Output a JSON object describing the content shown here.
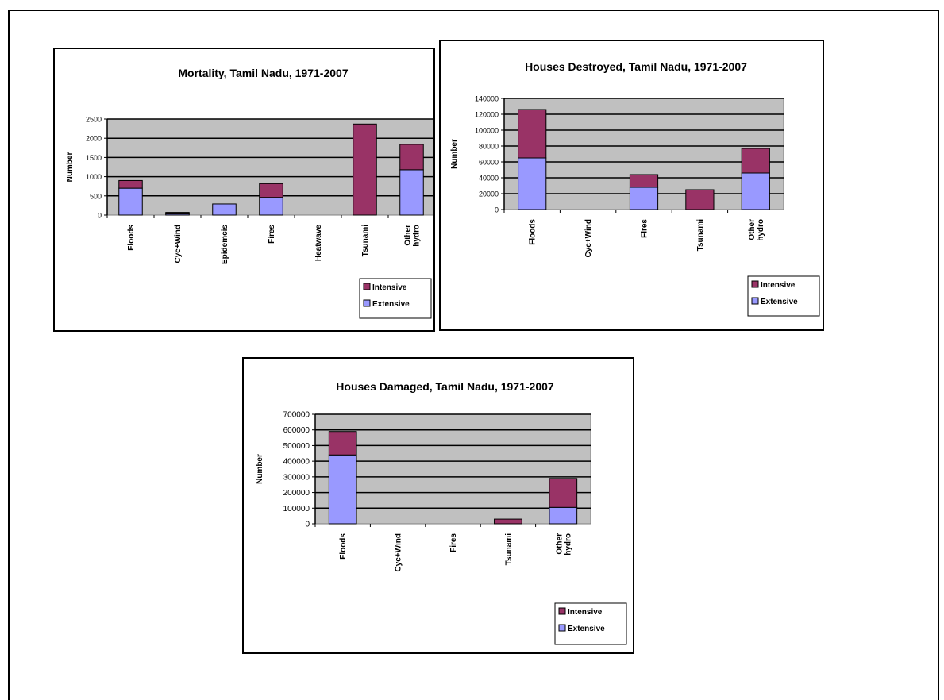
{
  "chart_data": [
    {
      "type": "bar",
      "stacked": true,
      "title": "Mortality, Tamil Nadu, 1971-2007",
      "ylabel": "Number",
      "xlabel": "",
      "categories": [
        "Floods",
        "Cyc+Wind",
        "Epidemcis",
        "Fires",
        "Heatwave",
        "Tsunami",
        "Other hydro"
      ],
      "series": [
        {
          "name": "Extensive",
          "color": "#9999ff",
          "values": [
            700,
            30,
            290,
            460,
            0,
            0,
            1180
          ]
        },
        {
          "name": "Intensive",
          "color": "#993366",
          "values": [
            200,
            40,
            0,
            360,
            0,
            2370,
            660
          ]
        }
      ],
      "ylim": [
        0,
        2500
      ],
      "yticks": [
        0,
        500,
        1000,
        1500,
        2000,
        2500
      ],
      "grid": true,
      "legend": "bottom-right",
      "legend_entries": [
        "Intensive",
        "Extensive"
      ]
    },
    {
      "type": "bar",
      "stacked": true,
      "title": "Houses Destroyed, Tamil Nadu, 1971-2007",
      "ylabel": "Number",
      "xlabel": "",
      "categories": [
        "Floods",
        "Cyc+Wind",
        "Fires",
        "Tsunami",
        "Other hydro"
      ],
      "series": [
        {
          "name": "Extensive",
          "color": "#9999ff",
          "values": [
            65000,
            0,
            28000,
            0,
            46000
          ]
        },
        {
          "name": "Intensive",
          "color": "#993366",
          "values": [
            61000,
            0,
            16000,
            25000,
            31000
          ]
        }
      ],
      "ylim": [
        0,
        140000
      ],
      "yticks": [
        0,
        20000,
        40000,
        60000,
        80000,
        100000,
        120000,
        140000
      ],
      "grid": true,
      "legend": "bottom-right",
      "legend_entries": [
        "Intensive",
        "Extensive"
      ]
    },
    {
      "type": "bar",
      "stacked": true,
      "title": "Houses Damaged, Tamil Nadu, 1971-2007",
      "ylabel": "Number",
      "xlabel": "",
      "categories": [
        "Floods",
        "Cyc+Wind",
        "Fires",
        "Tsunami",
        "Other hydro"
      ],
      "series": [
        {
          "name": "Extensive",
          "color": "#9999ff",
          "values": [
            440000,
            0,
            0,
            0,
            105000
          ]
        },
        {
          "name": "Intensive",
          "color": "#993366",
          "values": [
            150000,
            0,
            0,
            30000,
            185000
          ]
        }
      ],
      "ylim": [
        0,
        700000
      ],
      "yticks": [
        0,
        100000,
        200000,
        300000,
        400000,
        500000,
        600000,
        700000
      ],
      "grid": true,
      "legend": "bottom-right",
      "legend_entries": [
        "Intensive",
        "Extensive"
      ]
    }
  ]
}
